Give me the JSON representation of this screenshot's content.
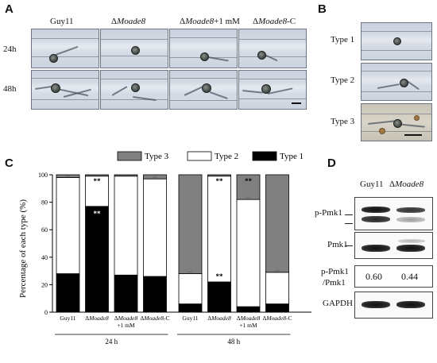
{
  "panels": {
    "a": "A",
    "b": "B",
    "c": "C",
    "d": "D"
  },
  "panel_a": {
    "columns": [
      {
        "pre": "",
        "name": "Guy11",
        "italic": "",
        "post": ""
      },
      {
        "pre": "Δ",
        "name": "",
        "italic": "Moade8",
        "post": ""
      },
      {
        "pre": "Δ",
        "name": "",
        "italic": "Moade8",
        "post": "+1 mM"
      },
      {
        "pre": "Δ",
        "name": "",
        "italic": "Moade8",
        "post": "-C"
      }
    ],
    "rows": [
      "24h",
      "48h"
    ]
  },
  "panel_b": {
    "rows": [
      "Type 1",
      "Type 2",
      "Type 3"
    ]
  },
  "panel_d": {
    "col1": "Guy11",
    "col2_pre": "Δ",
    "col2_italic": "Moade8",
    "row_ppmk1": "p-Pmk1",
    "row_pmk1": "Pmk1",
    "ratio_label_line1": "p-Pmk1",
    "ratio_label_line2": "/Pmk1",
    "ratio_values": [
      "0.60",
      "0.44"
    ],
    "row_gapdh": "GAPDH"
  },
  "colors": {
    "type1": "#000000",
    "type2": "#ffffff",
    "type3": "#808080"
  },
  "chart_data": {
    "type": "bar",
    "stacked": true,
    "ylabel": "Percentage of each type  (%)",
    "ylim": [
      0,
      100
    ],
    "yticks": [
      0,
      20,
      40,
      60,
      80,
      100
    ],
    "legend": [
      {
        "name": "Type 3",
        "color": "#808080"
      },
      {
        "name": "Type 2",
        "color": "#ffffff"
      },
      {
        "name": "Type 1",
        "color": "#000000"
      }
    ],
    "legend_position": "top",
    "groups": [
      {
        "label": "24 h",
        "categories": [
          {
            "lines": [
              "Guy11"
            ],
            "type1": 28,
            "type2": 70,
            "type3": 2
          },
          {
            "lines": [
              "ΔMoade8"
            ],
            "type1": 77,
            "type2": 22,
            "type3": 1,
            "sig": [
              "**",
              "**"
            ]
          },
          {
            "lines": [
              "ΔMoade8",
              "+1 mM"
            ],
            "type1": 27,
            "type2": 72,
            "type3": 1
          },
          {
            "lines": [
              "ΔMoade8-C"
            ],
            "type1": 26,
            "type2": 71,
            "type3": 3
          }
        ]
      },
      {
        "label": "48 h",
        "categories": [
          {
            "lines": [
              "Guy11"
            ],
            "type1": 6,
            "type2": 22,
            "type3": 72
          },
          {
            "lines": [
              "ΔMoade8"
            ],
            "type1": 22,
            "type2": 77,
            "type3": 1,
            "sig": [
              "**",
              "**"
            ]
          },
          {
            "lines": [
              "ΔMoade8",
              "+1 mM"
            ],
            "type1": 4,
            "type2": 78,
            "type3": 18,
            "sig": [
              "**"
            ]
          },
          {
            "lines": [
              "ΔMoade8-C"
            ],
            "type1": 6,
            "type2": 23,
            "type3": 71
          }
        ]
      }
    ]
  }
}
